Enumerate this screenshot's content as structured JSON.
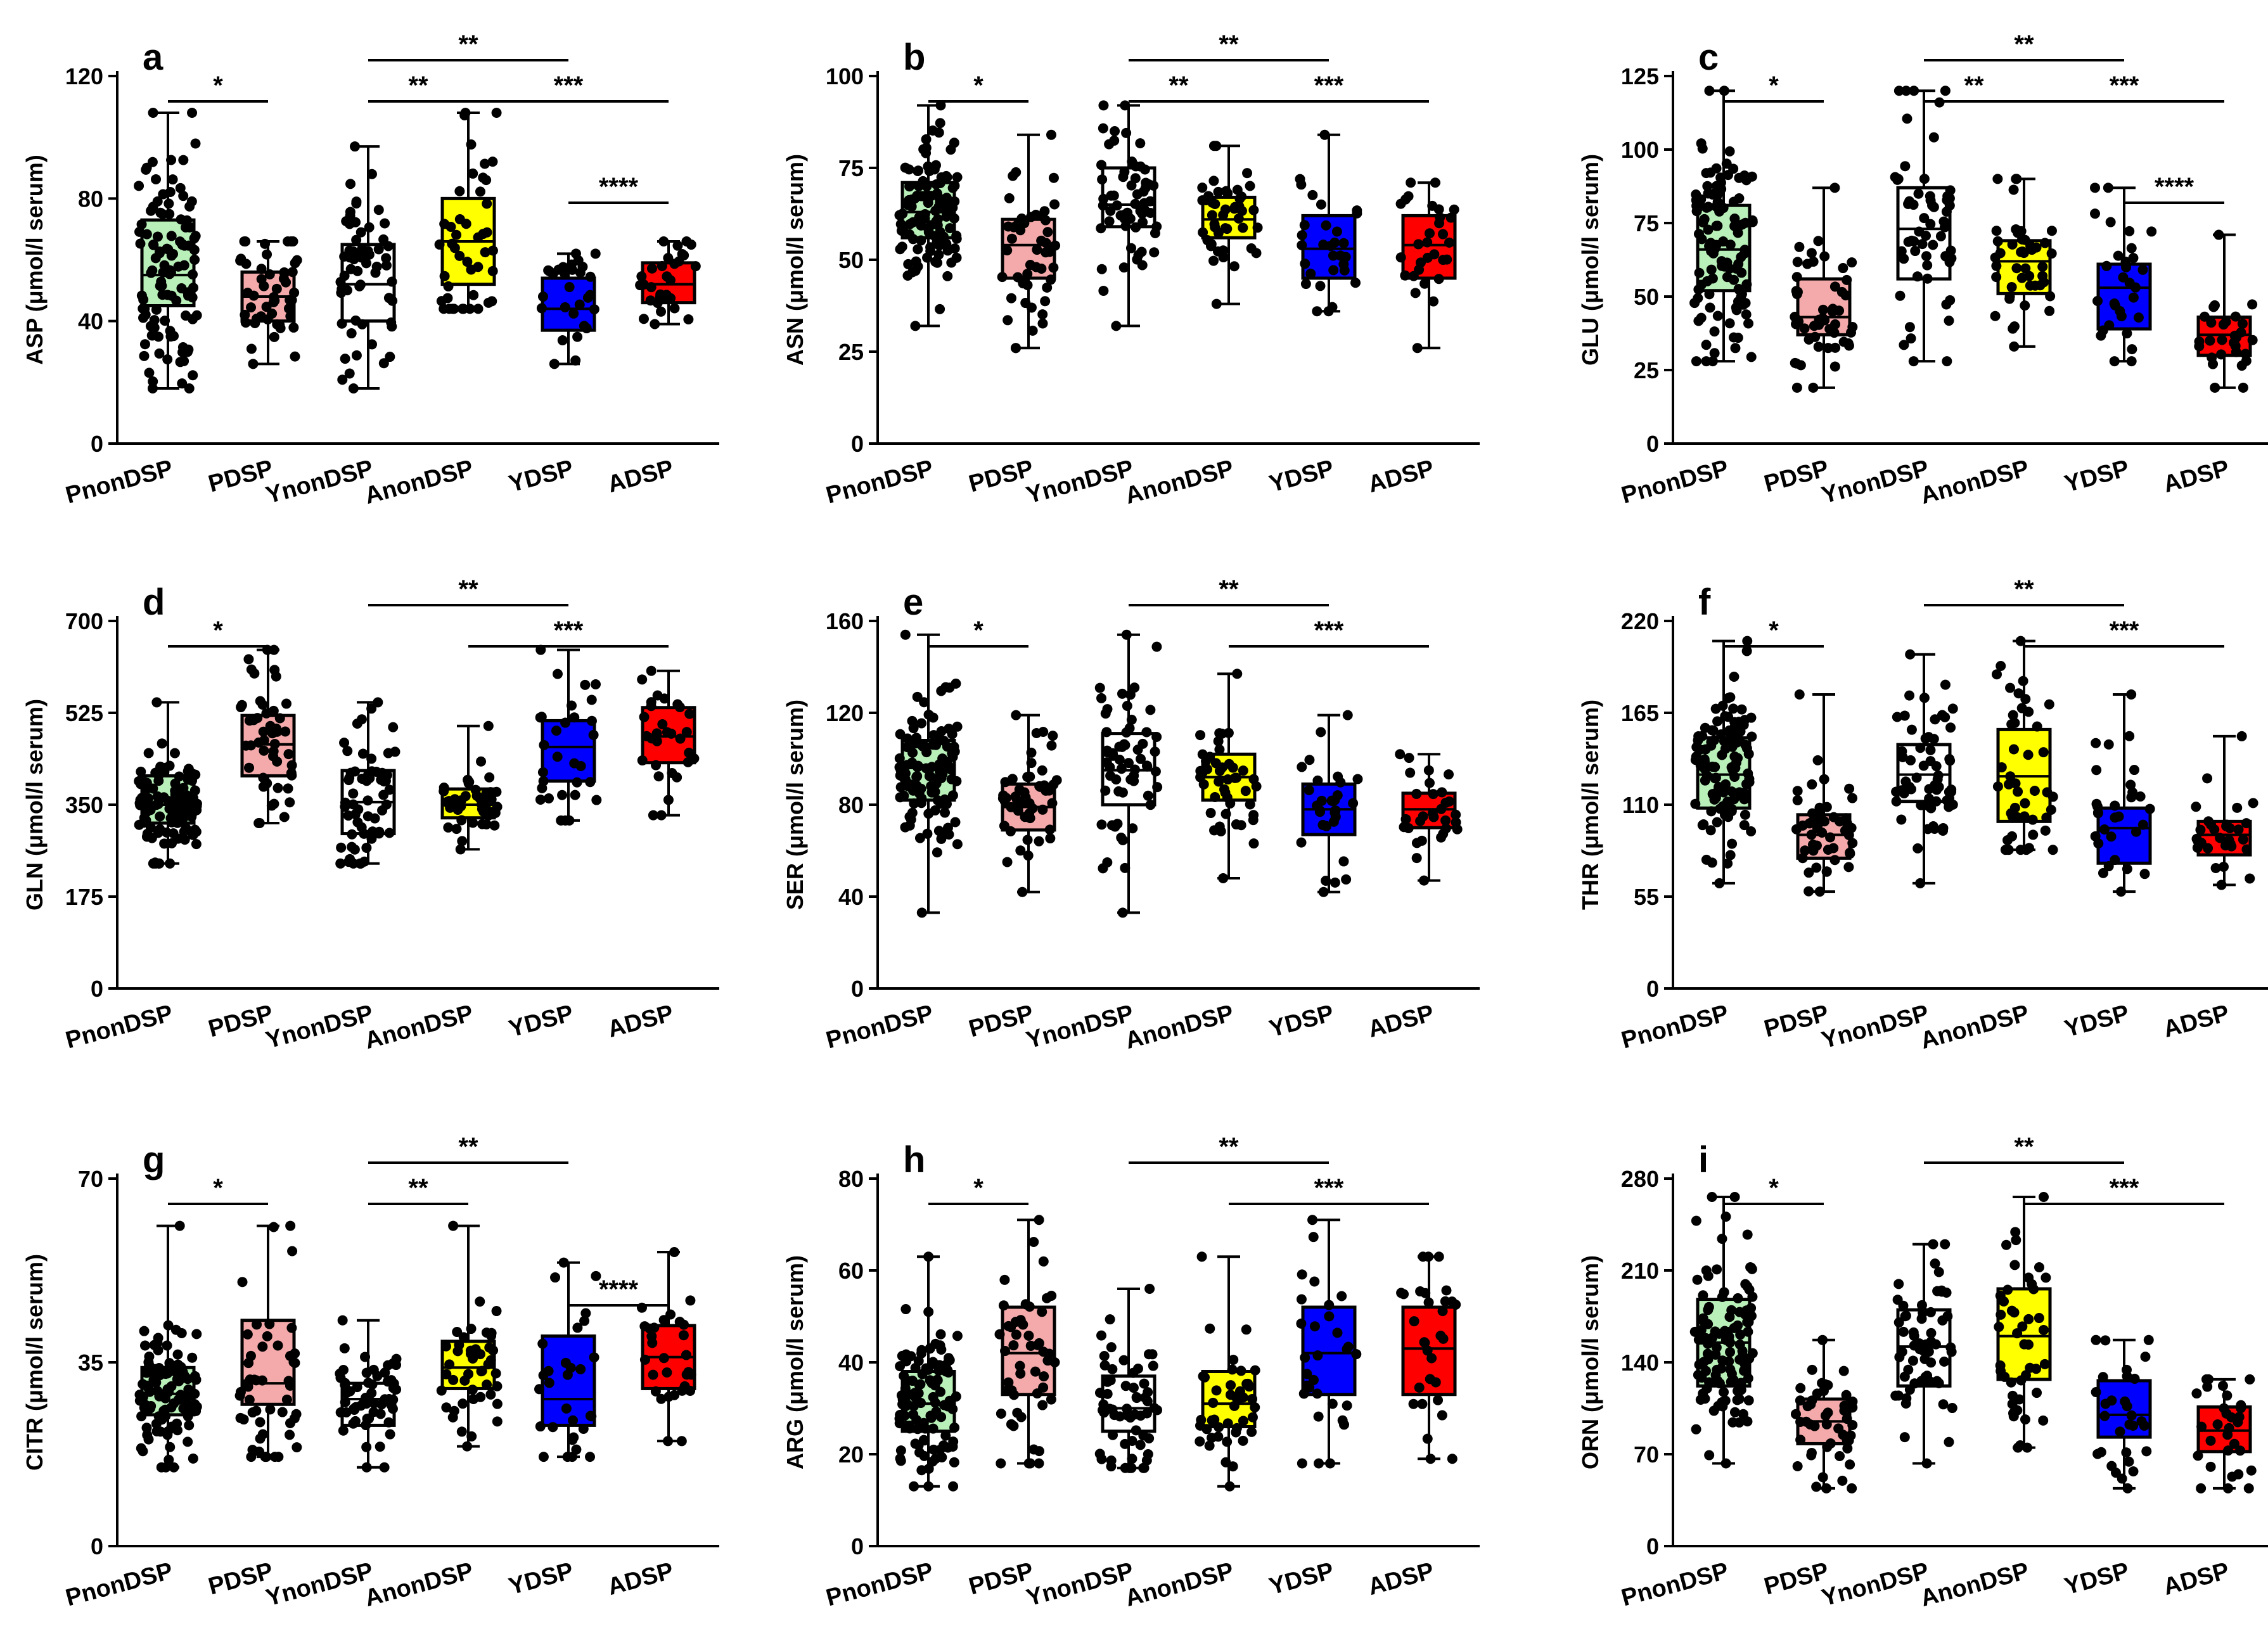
{
  "figure": {
    "groups": [
      "PnonDSP",
      "PDSP",
      "YnonDSP",
      "AnonDSP",
      "YDSP",
      "ADSP"
    ],
    "group_colors": [
      "#b9f0b9",
      "#f4aaaa",
      "#ffffff",
      "#ffff00",
      "#0000ff",
      "#ff0000"
    ],
    "unit": "(μmol/l serum)"
  },
  "chart_data": [
    {
      "type": "box",
      "panel": "a",
      "ylabel": "ASP",
      "ylim": [
        0,
        120
      ],
      "yticks": [
        "0",
        "40",
        "80",
        "120"
      ],
      "categories": [
        "PnonDSP",
        "PDSP",
        "YnonDSP",
        "AnonDSP",
        "YDSP",
        "ADSP"
      ],
      "boxes": [
        {
          "min": 18,
          "q1": 45,
          "median": 55,
          "q3": 73,
          "max": 108,
          "n": 110
        },
        {
          "min": 26,
          "q1": 40,
          "median": 48,
          "q3": 56,
          "max": 66,
          "n": 50
        },
        {
          "min": 18,
          "q1": 40,
          "median": 52,
          "q3": 65,
          "max": 97,
          "n": 60
        },
        {
          "min": 44,
          "q1": 52,
          "median": 66,
          "q3": 80,
          "max": 108,
          "n": 45
        },
        {
          "min": 26,
          "q1": 37,
          "median": 44,
          "q3": 54,
          "max": 62,
          "n": 30
        },
        {
          "min": 39,
          "q1": 46,
          "median": 52,
          "q3": 59,
          "max": 66,
          "n": 30
        }
      ],
      "significance": [
        {
          "from": 0,
          "to": 1,
          "label": "*"
        },
        {
          "from": 2,
          "to": 3,
          "label": "**"
        },
        {
          "from": 2,
          "to": 4,
          "label": "**"
        },
        {
          "from": 3,
          "to": 5,
          "label": "***"
        },
        {
          "from": 4,
          "to": 5,
          "label": "****"
        }
      ]
    },
    {
      "type": "box",
      "panel": "b",
      "ylabel": "ASN",
      "ylim": [
        0,
        100
      ],
      "yticks": [
        "0",
        "25",
        "50",
        "75",
        "100"
      ],
      "categories": [
        "PnonDSP",
        "PDSP",
        "YnonDSP",
        "AnonDSP",
        "YDSP",
        "ADSP"
      ],
      "boxes": [
        {
          "min": 32,
          "q1": 56,
          "median": 63,
          "q3": 71,
          "max": 92,
          "n": 110
        },
        {
          "min": 26,
          "q1": 45,
          "median": 54,
          "q3": 61,
          "max": 84,
          "n": 50
        },
        {
          "min": 32,
          "q1": 59,
          "median": 65,
          "q3": 75,
          "max": 92,
          "n": 60
        },
        {
          "min": 38,
          "q1": 56,
          "median": 61,
          "q3": 67,
          "max": 81,
          "n": 45
        },
        {
          "min": 36,
          "q1": 45,
          "median": 53,
          "q3": 62,
          "max": 84,
          "n": 30
        },
        {
          "min": 26,
          "q1": 45,
          "median": 54,
          "q3": 62,
          "max": 71,
          "n": 30
        }
      ],
      "significance": [
        {
          "from": 0,
          "to": 1,
          "label": "*"
        },
        {
          "from": 2,
          "to": 3,
          "label": "**"
        },
        {
          "from": 2,
          "to": 4,
          "label": "**"
        },
        {
          "from": 3,
          "to": 5,
          "label": "***"
        }
      ]
    },
    {
      "type": "box",
      "panel": "c",
      "ylabel": "GLU",
      "ylim": [
        0,
        125
      ],
      "yticks": [
        "0",
        "25",
        "50",
        "75",
        "100",
        "125"
      ],
      "categories": [
        "PnonDSP",
        "PDSP",
        "YnonDSP",
        "AnonDSP",
        "YDSP",
        "ADSP"
      ],
      "boxes": [
        {
          "min": 28,
          "q1": 52,
          "median": 66,
          "q3": 81,
          "max": 120,
          "n": 110
        },
        {
          "min": 19,
          "q1": 37,
          "median": 43,
          "q3": 56,
          "max": 87,
          "n": 50
        },
        {
          "min": 28,
          "q1": 56,
          "median": 73,
          "q3": 87,
          "max": 120,
          "n": 60
        },
        {
          "min": 33,
          "q1": 51,
          "median": 62,
          "q3": 69,
          "max": 90,
          "n": 45
        },
        {
          "min": 28,
          "q1": 39,
          "median": 53,
          "q3": 61,
          "max": 87,
          "n": 30
        },
        {
          "min": 19,
          "q1": 30,
          "median": 37,
          "q3": 43,
          "max": 71,
          "n": 30
        }
      ],
      "significance": [
        {
          "from": 0,
          "to": 1,
          "label": "*"
        },
        {
          "from": 2,
          "to": 3,
          "label": "**"
        },
        {
          "from": 2,
          "to": 4,
          "label": "**"
        },
        {
          "from": 3,
          "to": 5,
          "label": "***"
        },
        {
          "from": 4,
          "to": 5,
          "label": "****"
        }
      ]
    },
    {
      "type": "box",
      "panel": "d",
      "ylabel": "GLN",
      "ylim": [
        0,
        700
      ],
      "yticks": [
        "0",
        "175",
        "350",
        "525",
        "700"
      ],
      "categories": [
        "PnonDSP",
        "PDSP",
        "YnonDSP",
        "AnonDSP",
        "YDSP",
        "ADSP"
      ],
      "boxes": [
        {
          "min": 238,
          "q1": 315,
          "median": 350,
          "q3": 405,
          "max": 545,
          "n": 110
        },
        {
          "min": 315,
          "q1": 405,
          "median": 465,
          "q3": 520,
          "max": 645,
          "n": 50
        },
        {
          "min": 238,
          "q1": 295,
          "median": 355,
          "q3": 415,
          "max": 545,
          "n": 60
        },
        {
          "min": 265,
          "q1": 325,
          "median": 350,
          "q3": 380,
          "max": 500,
          "n": 45
        },
        {
          "min": 320,
          "q1": 395,
          "median": 460,
          "q3": 510,
          "max": 645,
          "n": 30
        },
        {
          "min": 330,
          "q1": 430,
          "median": 480,
          "q3": 535,
          "max": 605,
          "n": 30
        }
      ],
      "significance": [
        {
          "from": 0,
          "to": 1,
          "label": "*"
        },
        {
          "from": 2,
          "to": 4,
          "label": "**"
        },
        {
          "from": 3,
          "to": 5,
          "label": "***"
        }
      ]
    },
    {
      "type": "box",
      "panel": "e",
      "ylabel": "SER",
      "ylim": [
        0,
        160
      ],
      "yticks": [
        "0",
        "40",
        "80",
        "120",
        "160"
      ],
      "categories": [
        "PnonDSP",
        "PDSP",
        "YnonDSP",
        "AnonDSP",
        "YDSP",
        "ADSP"
      ],
      "boxes": [
        {
          "min": 33,
          "q1": 82,
          "median": 96,
          "q3": 108,
          "max": 154,
          "n": 110
        },
        {
          "min": 42,
          "q1": 69,
          "median": 79,
          "q3": 89,
          "max": 119,
          "n": 50
        },
        {
          "min": 33,
          "q1": 80,
          "median": 95,
          "q3": 111,
          "max": 154,
          "n": 60
        },
        {
          "min": 48,
          "q1": 82,
          "median": 92,
          "q3": 102,
          "max": 137,
          "n": 45
        },
        {
          "min": 42,
          "q1": 67,
          "median": 78,
          "q3": 89,
          "max": 119,
          "n": 30
        },
        {
          "min": 47,
          "q1": 70,
          "median": 78,
          "q3": 85,
          "max": 102,
          "n": 30
        }
      ],
      "significance": [
        {
          "from": 0,
          "to": 1,
          "label": "*"
        },
        {
          "from": 2,
          "to": 4,
          "label": "**"
        },
        {
          "from": 3,
          "to": 5,
          "label": "***"
        }
      ]
    },
    {
      "type": "box",
      "panel": "f",
      "ylabel": "THR",
      "ylim": [
        0,
        220
      ],
      "yticks": [
        "0",
        "55",
        "110",
        "165",
        "220"
      ],
      "categories": [
        "PnonDSP",
        "PDSP",
        "YnonDSP",
        "AnonDSP",
        "YDSP",
        "ADSP"
      ],
      "boxes": [
        {
          "min": 63,
          "q1": 108,
          "median": 128,
          "q3": 150,
          "max": 208,
          "n": 110
        },
        {
          "min": 58,
          "q1": 78,
          "median": 92,
          "q3": 104,
          "max": 176,
          "n": 50
        },
        {
          "min": 63,
          "q1": 112,
          "median": 128,
          "q3": 146,
          "max": 200,
          "n": 60
        },
        {
          "min": 83,
          "q1": 100,
          "median": 127,
          "q3": 155,
          "max": 208,
          "n": 45
        },
        {
          "min": 58,
          "q1": 75,
          "median": 96,
          "q3": 108,
          "max": 176,
          "n": 30
        },
        {
          "min": 62,
          "q1": 80,
          "median": 92,
          "q3": 100,
          "max": 151,
          "n": 30
        }
      ],
      "significance": [
        {
          "from": 0,
          "to": 1,
          "label": "*"
        },
        {
          "from": 2,
          "to": 4,
          "label": "**"
        },
        {
          "from": 3,
          "to": 5,
          "label": "***"
        }
      ]
    },
    {
      "type": "box",
      "panel": "g",
      "ylabel": "CITR",
      "ylim": [
        0,
        70
      ],
      "yticks": [
        "0",
        "35",
        "70"
      ],
      "categories": [
        "PnonDSP",
        "PDSP",
        "YnonDSP",
        "AnonDSP",
        "YDSP",
        "ADSP"
      ],
      "boxes": [
        {
          "min": 15,
          "q1": 25,
          "median": 29,
          "q3": 34,
          "max": 61,
          "n": 110
        },
        {
          "min": 17,
          "q1": 27,
          "median": 31,
          "q3": 43,
          "max": 61,
          "n": 50
        },
        {
          "min": 15,
          "q1": 23,
          "median": 28,
          "q3": 31,
          "max": 43,
          "n": 60
        },
        {
          "min": 19,
          "q1": 30,
          "median": 34,
          "q3": 39,
          "max": 61,
          "n": 45
        },
        {
          "min": 17,
          "q1": 23,
          "median": 28,
          "q3": 40,
          "max": 54,
          "n": 30
        },
        {
          "min": 20,
          "q1": 30,
          "median": 36,
          "q3": 42,
          "max": 56,
          "n": 30
        }
      ],
      "significance": [
        {
          "from": 0,
          "to": 1,
          "label": "*"
        },
        {
          "from": 2,
          "to": 3,
          "label": "**"
        },
        {
          "from": 2,
          "to": 4,
          "label": "**"
        },
        {
          "from": 4,
          "to": 5,
          "label": "****"
        }
      ]
    },
    {
      "type": "box",
      "panel": "h",
      "ylabel": "ARG",
      "ylim": [
        0,
        80
      ],
      "yticks": [
        "0",
        "20",
        "40",
        "60",
        "80"
      ],
      "categories": [
        "PnonDSP",
        "PDSP",
        "YnonDSP",
        "AnonDSP",
        "YDSP",
        "ADSP"
      ],
      "boxes": [
        {
          "min": 13,
          "q1": 25,
          "median": 31,
          "q3": 38,
          "max": 63,
          "n": 110
        },
        {
          "min": 18,
          "q1": 33,
          "median": 42,
          "q3": 52,
          "max": 71,
          "n": 50
        },
        {
          "min": 17,
          "q1": 25,
          "median": 30,
          "q3": 37,
          "max": 56,
          "n": 60
        },
        {
          "min": 13,
          "q1": 26,
          "median": 31,
          "q3": 38,
          "max": 63,
          "n": 45
        },
        {
          "min": 18,
          "q1": 33,
          "median": 42,
          "q3": 52,
          "max": 71,
          "n": 30
        },
        {
          "min": 19,
          "q1": 33,
          "median": 43,
          "q3": 52,
          "max": 63,
          "n": 30
        }
      ],
      "significance": [
        {
          "from": 0,
          "to": 1,
          "label": "*"
        },
        {
          "from": 2,
          "to": 4,
          "label": "**"
        },
        {
          "from": 3,
          "to": 5,
          "label": "***"
        }
      ]
    },
    {
      "type": "box",
      "panel": "i",
      "ylabel": "ORN",
      "ylim": [
        0,
        280
      ],
      "yticks": [
        "0",
        "70",
        "140",
        "210",
        "280"
      ],
      "categories": [
        "PnonDSP",
        "PDSP",
        "YnonDSP",
        "AnonDSP",
        "YDSP",
        "ADSP"
      ],
      "boxes": [
        {
          "min": 63,
          "q1": 122,
          "median": 155,
          "q3": 188,
          "max": 266,
          "n": 110
        },
        {
          "min": 44,
          "q1": 78,
          "median": 95,
          "q3": 112,
          "max": 157,
          "n": 50
        },
        {
          "min": 63,
          "q1": 122,
          "median": 152,
          "q3": 180,
          "max": 230,
          "n": 60
        },
        {
          "min": 75,
          "q1": 127,
          "median": 160,
          "q3": 196,
          "max": 266,
          "n": 45
        },
        {
          "min": 44,
          "q1": 83,
          "median": 100,
          "q3": 126,
          "max": 157,
          "n": 30
        },
        {
          "min": 44,
          "q1": 72,
          "median": 88,
          "q3": 106,
          "max": 127,
          "n": 30
        }
      ],
      "significance": [
        {
          "from": 0,
          "to": 1,
          "label": "*"
        },
        {
          "from": 2,
          "to": 4,
          "label": "**"
        },
        {
          "from": 3,
          "to": 5,
          "label": "***"
        }
      ]
    }
  ]
}
